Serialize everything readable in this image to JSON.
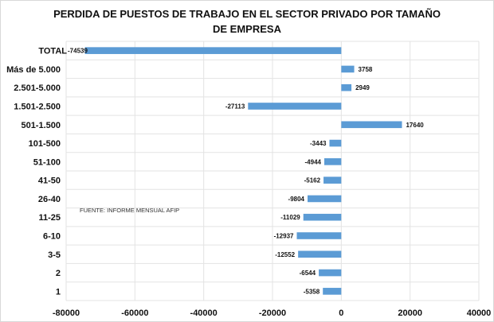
{
  "chart_data": {
    "type": "bar",
    "orientation": "horizontal",
    "title": "PERDIDA DE PUESTOS DE TRABAJO  EN EL SECTOR PRIVADO POR TAMAÑO  DE EMPRESA",
    "categories": [
      "TOTAL",
      "Más de 5.000",
      "2.501-5.000",
      "1.501-2.500",
      "501-1.500",
      "101-500",
      "51-100",
      "41-50",
      "26-40",
      "11-25",
      "6-10",
      "3-5",
      "2",
      "1"
    ],
    "values": [
      -74539,
      3758,
      2949,
      -27113,
      17640,
      -3443,
      -4944,
      -5162,
      -9804,
      -11029,
      -12937,
      -12552,
      -6544,
      -5358
    ],
    "xlim": [
      -80000,
      40000
    ],
    "xticks": [
      -80000,
      -60000,
      -40000,
      -20000,
      0,
      20000,
      40000
    ],
    "xlabel": "",
    "ylabel": "",
    "grid": true,
    "annotation": "FUENTE: INFORME MENSUAL AFIP",
    "bar_color": "#5b9bd5"
  }
}
